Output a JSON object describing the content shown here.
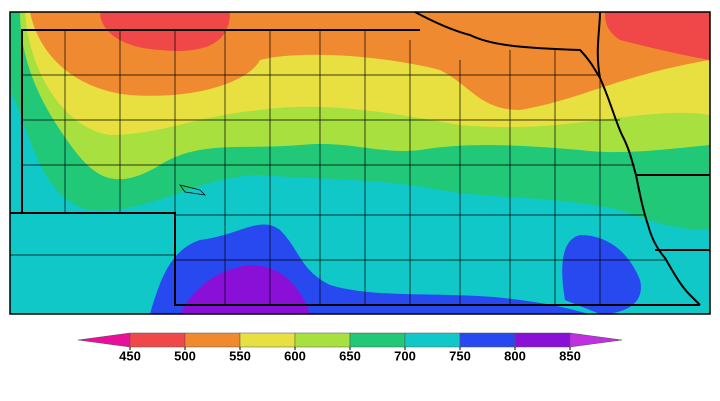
{
  "colorbar": {
    "ticks": [
      450,
      500,
      550,
      600,
      650,
      700,
      750,
      800,
      850
    ],
    "colors": [
      "#e8109a",
      "#f04848",
      "#f08a30",
      "#e8e040",
      "#a8e040",
      "#20c878",
      "#10c8c8",
      "#2848f0",
      "#8a10d8",
      "#c030e0"
    ]
  }
}
